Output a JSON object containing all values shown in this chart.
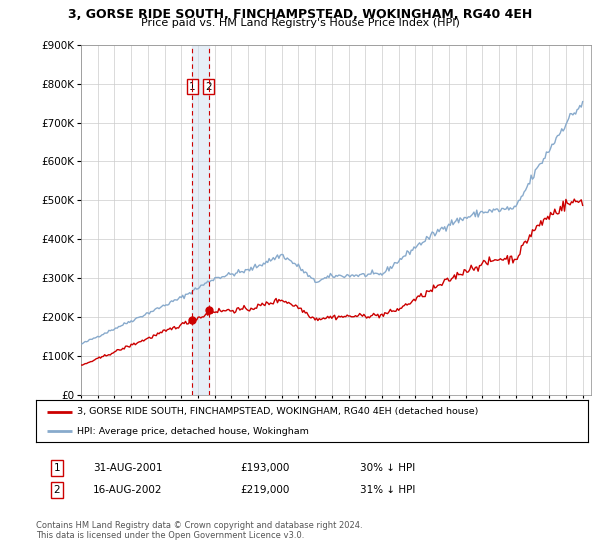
{
  "title": "3, GORSE RIDE SOUTH, FINCHAMPSTEAD, WOKINGHAM, RG40 4EH",
  "subtitle": "Price paid vs. HM Land Registry's House Price Index (HPI)",
  "legend_label_red": "3, GORSE RIDE SOUTH, FINCHAMPSTEAD, WOKINGHAM, RG40 4EH (detached house)",
  "legend_label_blue": "HPI: Average price, detached house, Wokingham",
  "footer": "Contains HM Land Registry data © Crown copyright and database right 2024.\nThis data is licensed under the Open Government Licence v3.0.",
  "transaction1_date": "31-AUG-2001",
  "transaction1_price": "£193,000",
  "transaction1_hpi": "30% ↓ HPI",
  "transaction2_date": "16-AUG-2002",
  "transaction2_price": "£219,000",
  "transaction2_hpi": "31% ↓ HPI",
  "vline1_x": 2001.667,
  "vline2_x": 2002.625,
  "marker1_x": 2001.667,
  "marker1_y": 193000,
  "marker2_x": 2002.625,
  "marker2_y": 219000,
  "ylim": [
    0,
    900000
  ],
  "xlim": [
    1995.0,
    2025.5
  ],
  "red_color": "#cc0000",
  "blue_color": "#88aacc",
  "vline_color": "#cc0000",
  "shade_color": "#d0e0f0"
}
